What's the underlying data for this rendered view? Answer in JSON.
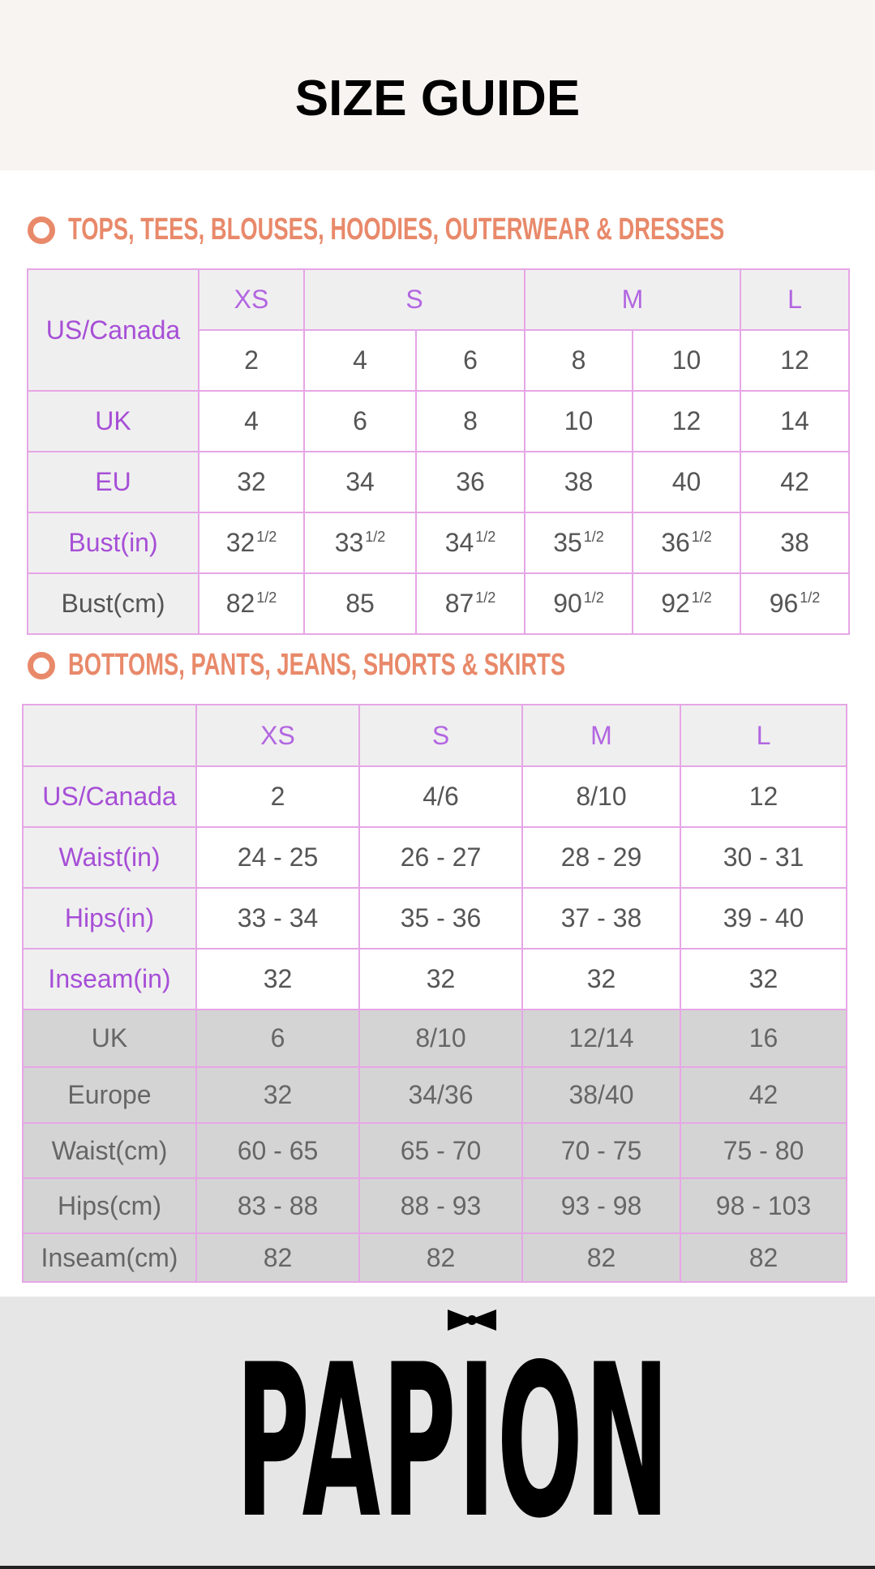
{
  "header": {
    "title": "SIZE GUIDE"
  },
  "tops": {
    "heading": "TOPS, TEES, BLOUSES, HOODIES, OUTERWEAR & DRESSES",
    "label": "US/Canada",
    "sizes": [
      "XS",
      "S",
      "M",
      "L"
    ],
    "us_values": [
      "2",
      "4",
      "6",
      "8",
      "10",
      "12"
    ],
    "rows": [
      {
        "label": "UK",
        "cells": [
          "4",
          "6",
          "8",
          "10",
          "12",
          "14"
        ]
      },
      {
        "label": "EU",
        "cells": [
          "32",
          "34",
          "36",
          "38",
          "40",
          "42"
        ]
      },
      {
        "label": "Bust(in)",
        "cells": [
          [
            "32",
            "1/2"
          ],
          [
            "33",
            "1/2"
          ],
          [
            "34",
            "1/2"
          ],
          [
            "35",
            "1/2"
          ],
          [
            "36",
            "1/2"
          ],
          "38"
        ]
      },
      {
        "label": "Bust(cm)",
        "cells": [
          [
            "82",
            "1/2"
          ],
          "85",
          [
            "87",
            "1/2"
          ],
          [
            "90",
            "1/2"
          ],
          [
            "92",
            "1/2"
          ],
          [
            "96",
            "1/2"
          ]
        ]
      }
    ]
  },
  "bottoms": {
    "heading": "BOTTOMS, PANTS, JEANS, SHORTS & SKIRTS",
    "sizes": [
      "XS",
      "S",
      "M",
      "L"
    ],
    "rows": [
      {
        "label": "US/Canada",
        "cells": [
          "2",
          "4/6",
          "8/10",
          "12"
        ]
      },
      {
        "label": "Waist(in)",
        "cells": [
          "24 - 25",
          "26 - 27",
          "28 - 29",
          "30 - 31"
        ]
      },
      {
        "label": "Hips(in)",
        "cells": [
          "33 - 34",
          "35 - 36",
          "37 - 38",
          "39 - 40"
        ]
      },
      {
        "label": "Inseam(in)",
        "cells": [
          "32",
          "32",
          "32",
          "32"
        ]
      }
    ],
    "metric_rows": [
      {
        "label": "UK",
        "cells": [
          "6",
          "8/10",
          "12/14",
          "16"
        ]
      },
      {
        "label": "Europe",
        "cells": [
          "32",
          "34/36",
          "38/40",
          "42"
        ]
      },
      {
        "label": "Waist(cm)",
        "cells": [
          "60 - 65",
          "65 - 70",
          "70 - 75",
          "75 - 80"
        ]
      },
      {
        "label": "Hips(cm)",
        "cells": [
          "83 - 88",
          "88 - 93",
          "93 - 98",
          "98 - 103"
        ]
      },
      {
        "label": "Inseam(cm)",
        "cells": [
          "82",
          "82",
          "82",
          "82"
        ]
      }
    ]
  },
  "footer": {
    "brand": "PAPION"
  }
}
